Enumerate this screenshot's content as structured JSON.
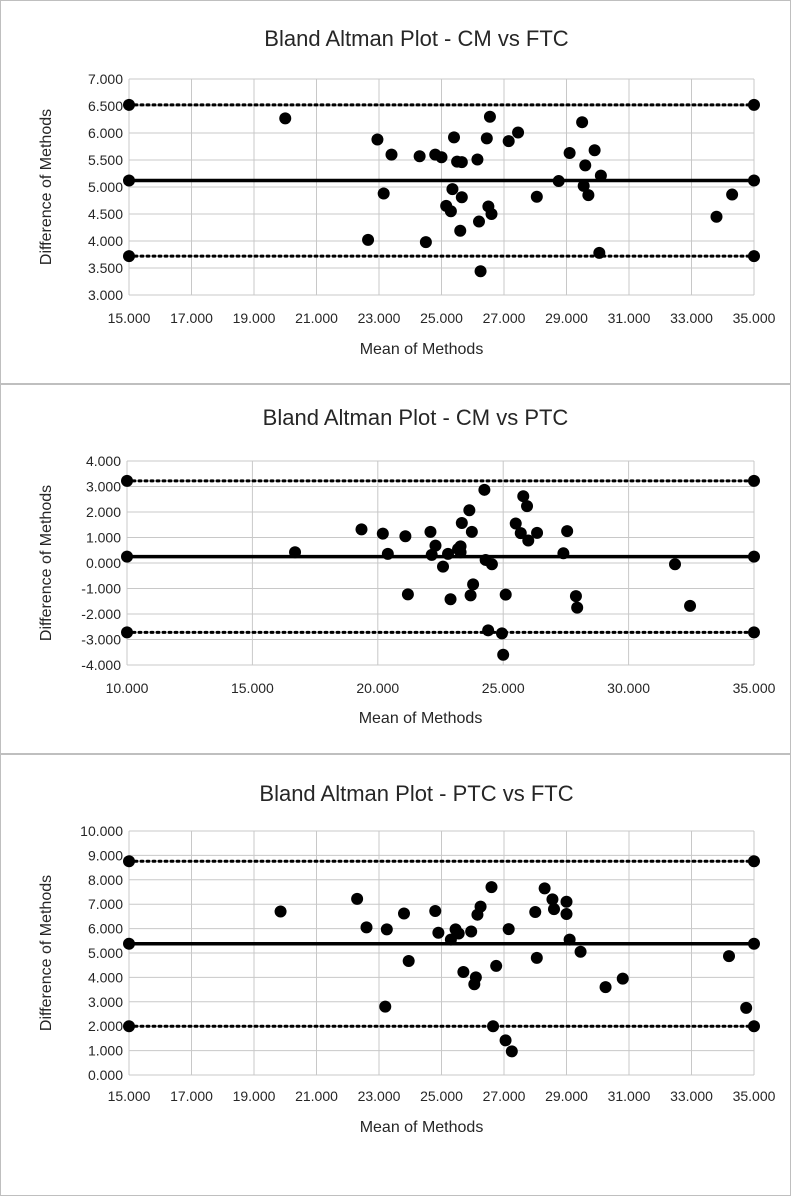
{
  "chart_data": [
    {
      "type": "scatter",
      "title": "Bland Altman Plot - CM vs FTC",
      "xlabel": "Mean of Methods",
      "ylabel": "Difference of Methods",
      "xlim": [
        15,
        35
      ],
      "ylim": [
        3,
        7
      ],
      "xticks": [
        15,
        17,
        19,
        21,
        23,
        25,
        27,
        29,
        31,
        33,
        35
      ],
      "yticks": [
        3,
        3.5,
        4,
        4.5,
        5,
        5.5,
        6,
        6.5,
        7
      ],
      "xtick_labels": [
        "15.000",
        "17.000",
        "19.000",
        "21.000",
        "23.000",
        "25.000",
        "27.000",
        "29.000",
        "31.000",
        "33.000",
        "35.000"
      ],
      "ytick_labels": [
        "3.000",
        "3.500",
        "4.000",
        "4.500",
        "5.000",
        "5.500",
        "6.000",
        "6.500",
        "7.000"
      ],
      "grid": true,
      "mean_line": 5.12,
      "upper_loa": 6.52,
      "lower_loa": 3.72,
      "points": [
        [
          20.0,
          6.27
        ],
        [
          22.65,
          4.02
        ],
        [
          22.95,
          5.88
        ],
        [
          23.15,
          4.88
        ],
        [
          23.4,
          5.6
        ],
        [
          24.3,
          5.57
        ],
        [
          24.5,
          3.98
        ],
        [
          24.8,
          5.6
        ],
        [
          25.0,
          5.55
        ],
        [
          25.15,
          4.65
        ],
        [
          25.3,
          4.55
        ],
        [
          25.35,
          4.96
        ],
        [
          25.4,
          5.92
        ],
        [
          25.5,
          5.47
        ],
        [
          25.6,
          4.19
        ],
        [
          25.65,
          4.81
        ],
        [
          25.65,
          5.46
        ],
        [
          26.15,
          5.51
        ],
        [
          26.2,
          4.36
        ],
        [
          26.25,
          3.44
        ],
        [
          26.45,
          5.9
        ],
        [
          26.5,
          4.64
        ],
        [
          26.55,
          6.3
        ],
        [
          26.6,
          4.5
        ],
        [
          27.15,
          5.85
        ],
        [
          27.45,
          6.01
        ],
        [
          28.05,
          4.82
        ],
        [
          28.75,
          5.11
        ],
        [
          29.1,
          5.63
        ],
        [
          29.5,
          6.2
        ],
        [
          29.55,
          5.02
        ],
        [
          29.6,
          5.4
        ],
        [
          29.7,
          4.85
        ],
        [
          29.9,
          5.68
        ],
        [
          30.05,
          3.78
        ],
        [
          30.1,
          5.21
        ],
        [
          33.8,
          4.45
        ],
        [
          34.3,
          4.86
        ]
      ]
    },
    {
      "type": "scatter",
      "title": "Bland Altman Plot - CM vs PTC",
      "xlabel": "Mean of Methods",
      "ylabel": "Difference of Methods",
      "xlim": [
        10,
        35
      ],
      "ylim": [
        -4,
        4
      ],
      "xticks": [
        10,
        15,
        20,
        25,
        30,
        35
      ],
      "yticks": [
        -4,
        -3,
        -2,
        -1,
        0,
        1,
        2,
        3,
        4
      ],
      "xtick_labels": [
        "10.000",
        "15.000",
        "20.000",
        "25.000",
        "30.000",
        "35.000"
      ],
      "ytick_labels": [
        "-4.000",
        "-3.000",
        "-2.000",
        "-1.000",
        "0.000",
        "1.000",
        "2.000",
        "3.000",
        "4.000"
      ],
      "grid": true,
      "mean_line": 0.25,
      "upper_loa": 3.22,
      "lower_loa": -2.72,
      "points": [
        [
          16.7,
          0.42
        ],
        [
          19.35,
          1.32
        ],
        [
          20.2,
          1.15
        ],
        [
          20.4,
          0.36
        ],
        [
          21.1,
          1.05
        ],
        [
          21.2,
          -1.23
        ],
        [
          22.1,
          1.22
        ],
        [
          22.15,
          0.32
        ],
        [
          22.3,
          0.68
        ],
        [
          22.6,
          -0.14
        ],
        [
          22.8,
          0.36
        ],
        [
          22.9,
          -1.42
        ],
        [
          23.2,
          0.55
        ],
        [
          23.3,
          0.65
        ],
        [
          23.3,
          0.42
        ],
        [
          23.35,
          1.57
        ],
        [
          23.65,
          2.07
        ],
        [
          23.7,
          -1.27
        ],
        [
          23.75,
          1.22
        ],
        [
          23.8,
          -0.84
        ],
        [
          24.25,
          2.87
        ],
        [
          24.3,
          0.12
        ],
        [
          24.4,
          -2.64
        ],
        [
          24.55,
          -0.05
        ],
        [
          24.95,
          -2.76
        ],
        [
          25.0,
          -3.6
        ],
        [
          25.1,
          -1.24
        ],
        [
          25.5,
          1.55
        ],
        [
          25.7,
          1.17
        ],
        [
          25.8,
          2.62
        ],
        [
          25.95,
          2.23
        ],
        [
          26.0,
          0.88
        ],
        [
          26.35,
          1.18
        ],
        [
          27.4,
          0.38
        ],
        [
          27.55,
          1.25
        ],
        [
          27.9,
          -1.3
        ],
        [
          27.95,
          -1.75
        ],
        [
          31.85,
          -0.05
        ],
        [
          32.45,
          -1.68
        ]
      ]
    },
    {
      "type": "scatter",
      "title": "Bland Altman Plot - PTC vs FTC",
      "xlabel": "Mean of Methods",
      "ylabel": "Difference of Methods",
      "xlim": [
        15,
        35
      ],
      "ylim": [
        0,
        10
      ],
      "xticks": [
        15,
        17,
        19,
        21,
        23,
        25,
        27,
        29,
        31,
        33,
        35
      ],
      "yticks": [
        0,
        1,
        2,
        3,
        4,
        5,
        6,
        7,
        8,
        9,
        10
      ],
      "xtick_labels": [
        "15.000",
        "17.000",
        "19.000",
        "21.000",
        "23.000",
        "25.000",
        "27.000",
        "29.000",
        "31.000",
        "33.000",
        "35.000"
      ],
      "ytick_labels": [
        "0.000",
        "1.000",
        "2.000",
        "3.000",
        "4.000",
        "5.000",
        "6.000",
        "7.000",
        "8.000",
        "9.000",
        "10.000"
      ],
      "grid": true,
      "mean_line": 5.38,
      "upper_loa": 8.76,
      "lower_loa": 2.0,
      "points": [
        [
          19.85,
          6.7
        ],
        [
          22.3,
          7.22
        ],
        [
          22.6,
          6.05
        ],
        [
          23.2,
          2.8
        ],
        [
          23.25,
          5.97
        ],
        [
          23.95,
          4.67
        ],
        [
          23.8,
          6.62
        ],
        [
          24.8,
          6.72
        ],
        [
          24.9,
          5.83
        ],
        [
          25.3,
          5.55
        ],
        [
          25.45,
          5.97
        ],
        [
          25.55,
          5.8
        ],
        [
          25.7,
          4.22
        ],
        [
          25.95,
          5.88
        ],
        [
          26.05,
          3.72
        ],
        [
          26.1,
          4.0
        ],
        [
          26.15,
          6.57
        ],
        [
          26.25,
          6.9
        ],
        [
          26.6,
          7.7
        ],
        [
          26.65,
          2.0
        ],
        [
          26.75,
          4.47
        ],
        [
          27.05,
          1.42
        ],
        [
          27.15,
          5.98
        ],
        [
          27.25,
          0.97
        ],
        [
          28.0,
          6.68
        ],
        [
          28.05,
          4.8
        ],
        [
          28.3,
          7.65
        ],
        [
          28.55,
          7.2
        ],
        [
          28.6,
          6.8
        ],
        [
          29.0,
          7.1
        ],
        [
          29.0,
          6.6
        ],
        [
          29.1,
          5.55
        ],
        [
          29.45,
          5.05
        ],
        [
          30.25,
          3.6
        ],
        [
          30.8,
          3.95
        ],
        [
          34.2,
          4.87
        ],
        [
          34.75,
          2.75
        ]
      ]
    }
  ]
}
